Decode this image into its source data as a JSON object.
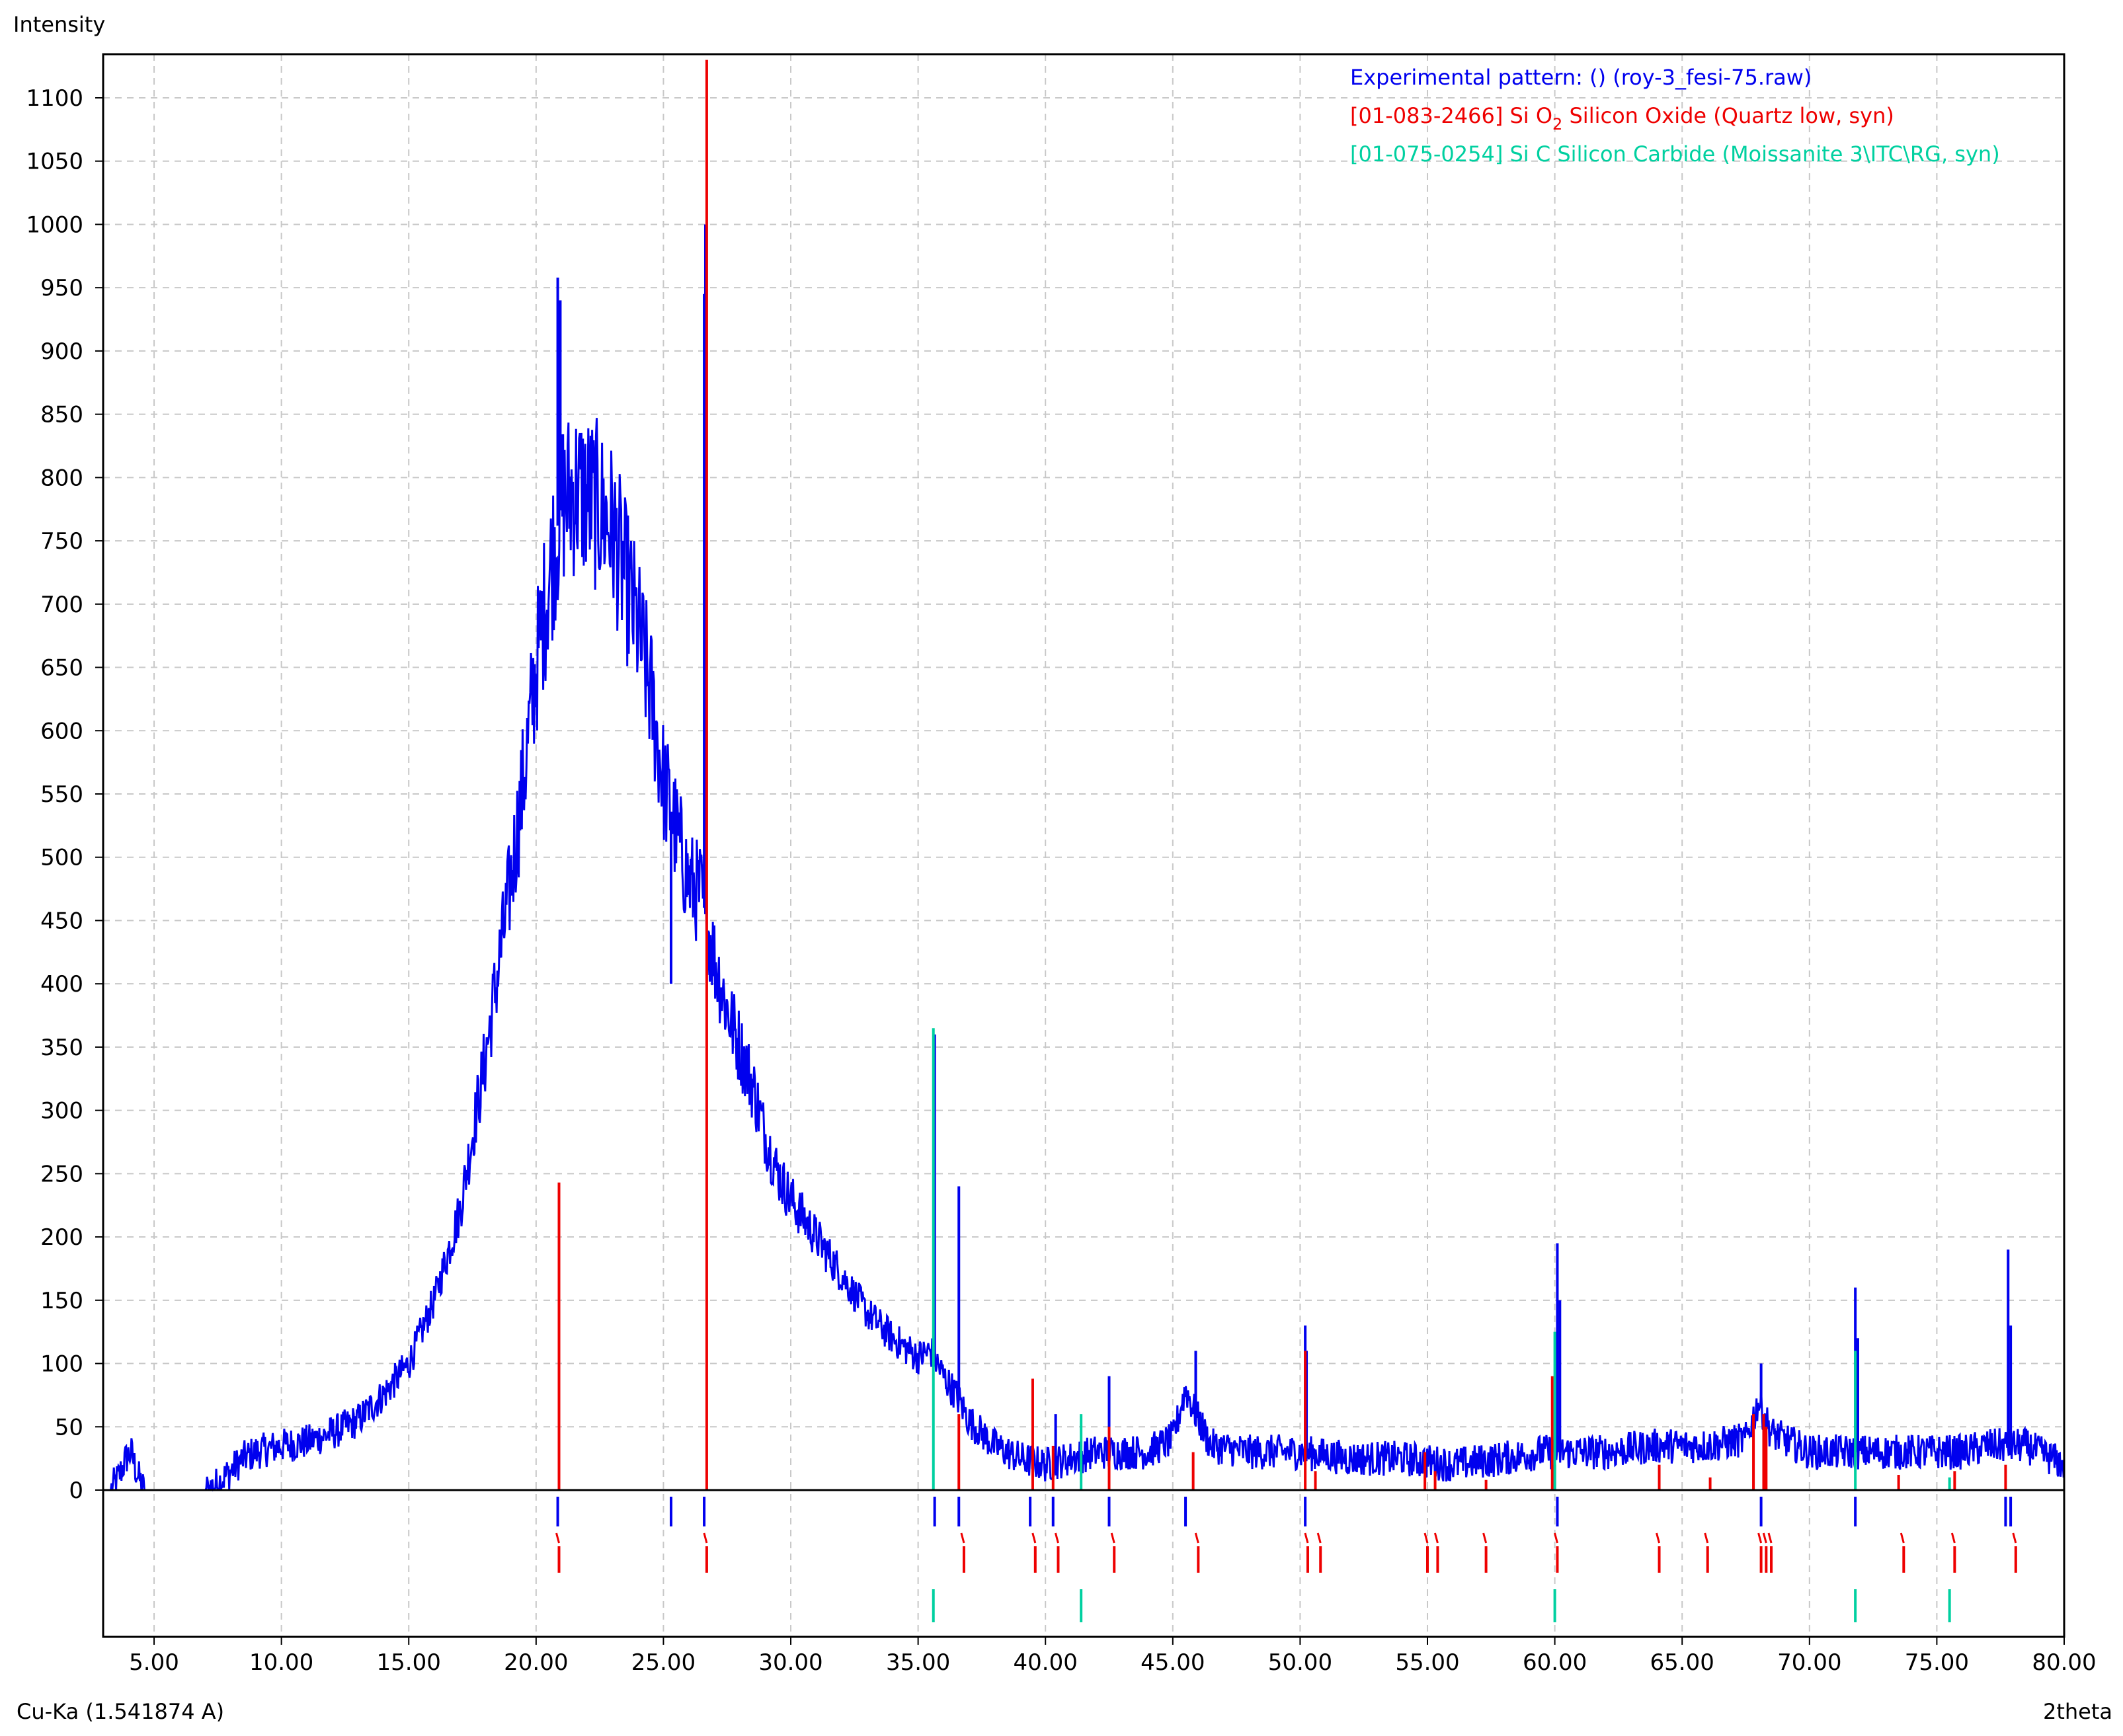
{
  "chart_data": {
    "type": "line",
    "ylabel": "Intensity",
    "xlabel": "2theta",
    "wavelength_label": "Cu-Ka (1.541874 A)",
    "xlim": [
      3.0,
      80.0
    ],
    "ylim": [
      0,
      1130
    ],
    "x_ticks": [
      5,
      10,
      15,
      20,
      25,
      30,
      35,
      40,
      45,
      50,
      55,
      60,
      65,
      70,
      75,
      80
    ],
    "x_tick_labels": [
      "5.00",
      "10.00",
      "15.00",
      "20.00",
      "25.00",
      "30.00",
      "35.00",
      "40.00",
      "45.00",
      "50.00",
      "55.00",
      "60.00",
      "65.00",
      "70.00",
      "75.00",
      "80.00"
    ],
    "y_ticks": [
      0,
      50,
      100,
      150,
      200,
      250,
      300,
      350,
      400,
      450,
      500,
      550,
      600,
      650,
      700,
      750,
      800,
      850,
      900,
      950,
      1000,
      1050,
      1100
    ],
    "grid": true,
    "legend_position": "top-right",
    "colors": {
      "experimental": "#0000ee",
      "quartz": "#ee0000",
      "moissanite": "#00d0a0",
      "grid": "#c8c8c8"
    },
    "legend": [
      {
        "key": "experimental",
        "text": "Experimental pattern:  () (roy-3_fesi-75.raw)"
      },
      {
        "key": "quartz",
        "text_before": "[01-083-2466] Si O",
        "subscript": "2",
        "text_after": " Silicon Oxide (Quartz low, syn)"
      },
      {
        "key": "moissanite",
        "text": "[01-075-0254] Si C Silicon Carbide (Moissanite 3\\ITC\\RG, syn)"
      }
    ],
    "experimental": {
      "envelope": [
        [
          3.3,
          0
        ],
        [
          3.6,
          10
        ],
        [
          3.9,
          25
        ],
        [
          4.1,
          30
        ],
        [
          4.3,
          15
        ],
        [
          4.6,
          0
        ],
        [
          7.0,
          0
        ],
        [
          7.5,
          5
        ],
        [
          8.0,
          15
        ],
        [
          8.5,
          25
        ],
        [
          9.0,
          30
        ],
        [
          10.0,
          35
        ],
        [
          11.0,
          38
        ],
        [
          12.0,
          45
        ],
        [
          13.0,
          55
        ],
        [
          14.0,
          75
        ],
        [
          15.0,
          100
        ],
        [
          16.0,
          150
        ],
        [
          17.0,
          220
        ],
        [
          18.0,
          340
        ],
        [
          19.0,
          480
        ],
        [
          19.5,
          560
        ],
        [
          20.0,
          650
        ],
        [
          20.5,
          720
        ],
        [
          21.0,
          780
        ],
        [
          21.5,
          790
        ],
        [
          22.0,
          785
        ],
        [
          22.5,
          775
        ],
        [
          23.0,
          760
        ],
        [
          23.5,
          720
        ],
        [
          24.0,
          680
        ],
        [
          24.5,
          630
        ],
        [
          25.0,
          560
        ],
        [
          25.5,
          520
        ],
        [
          26.0,
          480
        ],
        [
          26.5,
          470
        ],
        [
          27.0,
          420
        ],
        [
          27.5,
          380
        ],
        [
          28.0,
          350
        ],
        [
          28.5,
          320
        ],
        [
          29.0,
          280
        ],
        [
          29.5,
          250
        ],
        [
          30.0,
          230
        ],
        [
          31.0,
          200
        ],
        [
          32.0,
          170
        ],
        [
          33.0,
          140
        ],
        [
          34.0,
          120
        ],
        [
          35.0,
          105
        ],
        [
          35.5,
          110
        ],
        [
          36.0,
          90
        ],
        [
          36.5,
          75
        ],
        [
          37.0,
          55
        ],
        [
          38.0,
          35
        ],
        [
          39.0,
          25
        ],
        [
          40.0,
          20
        ],
        [
          41.0,
          25
        ],
        [
          42.0,
          30
        ],
        [
          43.0,
          30
        ],
        [
          44.0,
          30
        ],
        [
          45.0,
          40
        ],
        [
          45.5,
          80
        ],
        [
          45.9,
          60
        ],
        [
          46.5,
          35
        ],
        [
          48.0,
          30
        ],
        [
          50.0,
          30
        ],
        [
          52.0,
          25
        ],
        [
          54.0,
          25
        ],
        [
          56.0,
          20
        ],
        [
          58.0,
          25
        ],
        [
          59.5,
          30
        ],
        [
          60.5,
          30
        ],
        [
          62.0,
          30
        ],
        [
          64.0,
          35
        ],
        [
          66.0,
          35
        ],
        [
          67.5,
          40
        ],
        [
          68.0,
          70
        ],
        [
          68.5,
          45
        ],
        [
          70.0,
          30
        ],
        [
          72.0,
          30
        ],
        [
          74.0,
          30
        ],
        [
          76.0,
          30
        ],
        [
          77.0,
          35
        ],
        [
          78.5,
          35
        ],
        [
          80.0,
          20
        ]
      ],
      "peaks": [
        [
          20.85,
          958
        ],
        [
          20.95,
          940
        ],
        [
          26.6,
          945
        ],
        [
          26.65,
          1000
        ],
        [
          25.3,
          400
        ],
        [
          35.65,
          360
        ],
        [
          36.6,
          240
        ],
        [
          40.4,
          60
        ],
        [
          42.5,
          90
        ],
        [
          45.9,
          110
        ],
        [
          50.2,
          130
        ],
        [
          50.25,
          110
        ],
        [
          60.1,
          195
        ],
        [
          60.2,
          150
        ],
        [
          68.1,
          100
        ],
        [
          71.8,
          160
        ],
        [
          71.9,
          120
        ],
        [
          77.8,
          190
        ],
        [
          77.9,
          130
        ]
      ],
      "ticks": [
        20.85,
        25.3,
        26.6,
        35.65,
        36.6,
        39.4,
        40.3,
        42.5,
        45.5,
        50.2,
        60.1,
        68.1,
        71.8,
        77.7,
        77.9
      ]
    },
    "reference_quartz": {
      "lines": [
        [
          20.9,
          243
        ],
        [
          26.7,
          1130
        ],
        [
          36.6,
          60
        ],
        [
          39.5,
          88
        ],
        [
          40.3,
          35
        ],
        [
          42.5,
          50
        ],
        [
          45.8,
          30
        ],
        [
          50.2,
          110
        ],
        [
          50.6,
          15
        ],
        [
          54.9,
          30
        ],
        [
          55.3,
          15
        ],
        [
          57.3,
          8
        ],
        [
          59.9,
          90
        ],
        [
          60.0,
          20
        ],
        [
          64.1,
          20
        ],
        [
          66.1,
          10
        ],
        [
          67.8,
          60
        ],
        [
          68.2,
          60
        ],
        [
          68.3,
          50
        ],
        [
          73.5,
          12
        ],
        [
          75.7,
          15
        ],
        [
          77.7,
          20
        ]
      ],
      "ticks": [
        20.9,
        26.7,
        36.8,
        39.6,
        40.5,
        42.7,
        46.0,
        50.3,
        50.8,
        55.0,
        55.4,
        57.3,
        60.1,
        64.1,
        66.0,
        68.1,
        68.3,
        68.5,
        73.7,
        75.7,
        78.1
      ]
    },
    "reference_moissanite": {
      "lines": [
        [
          35.6,
          365
        ],
        [
          41.4,
          60
        ],
        [
          60.0,
          125
        ],
        [
          71.8,
          110
        ],
        [
          75.5,
          10
        ]
      ],
      "ticks": [
        35.6,
        41.4,
        60.0,
        71.8,
        75.5
      ]
    }
  }
}
